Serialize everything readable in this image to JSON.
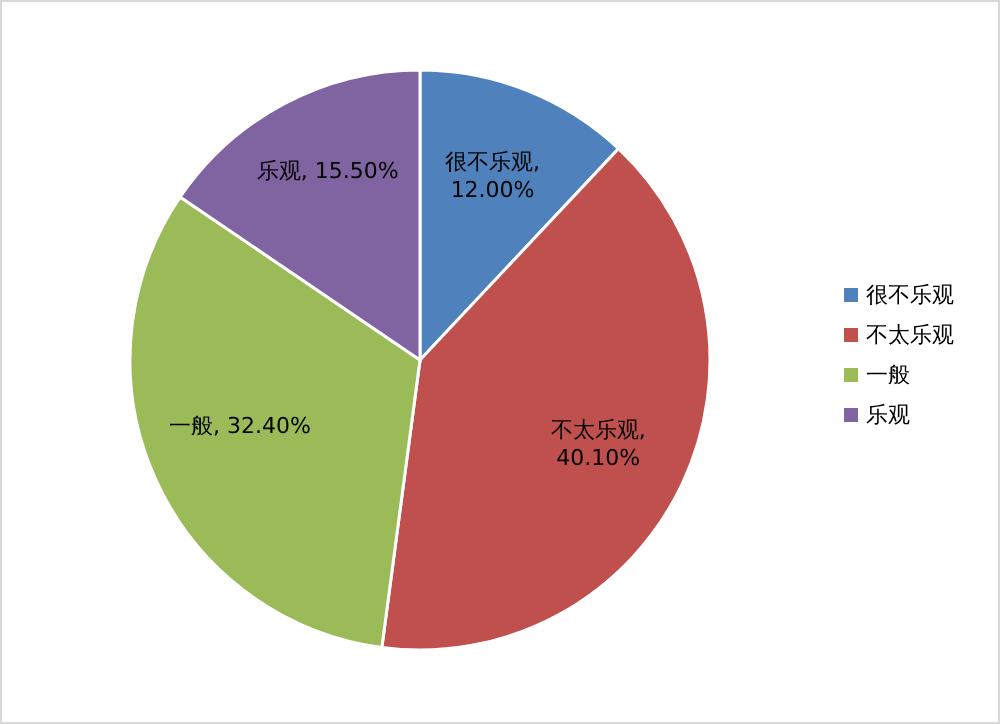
{
  "chart_data": {
    "type": "pie",
    "categories": [
      "很不乐观",
      "不太乐观",
      "一般",
      "乐观"
    ],
    "values": [
      12.0,
      40.1,
      32.4,
      15.5
    ],
    "value_labels": [
      "很不乐观, 12.00%",
      "不太乐观, 40.10%",
      "一般, 32.40%",
      "乐观, 15.50%"
    ],
    "colors": [
      "#4f81bd",
      "#c0504d",
      "#9bbb59",
      "#8064a2"
    ],
    "legend": "right"
  }
}
